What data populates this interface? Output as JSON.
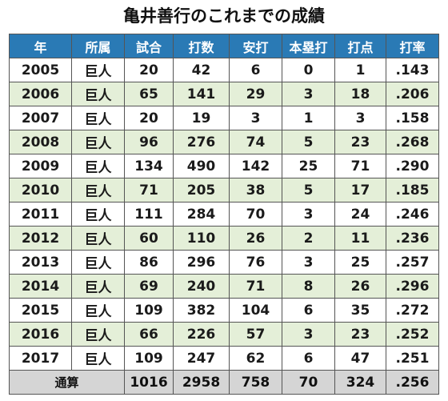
{
  "title": "亀井善行のこれまでの成績",
  "header": [
    "年",
    "所属",
    "試合",
    "打数",
    "安打",
    "本塁打",
    "打点",
    "打率"
  ],
  "rows": [
    [
      "2005",
      "巨人",
      "20",
      "42",
      "6",
      "0",
      "1",
      ".143"
    ],
    [
      "2006",
      "巨人",
      "65",
      "141",
      "29",
      "3",
      "18",
      ".206"
    ],
    [
      "2007",
      "巨人",
      "20",
      "19",
      "3",
      "1",
      "3",
      ".158"
    ],
    [
      "2008",
      "巨人",
      "96",
      "276",
      "74",
      "5",
      "23",
      ".268"
    ],
    [
      "2009",
      "巨人",
      "134",
      "490",
      "142",
      "25",
      "71",
      ".290"
    ],
    [
      "2010",
      "巨人",
      "71",
      "205",
      "38",
      "5",
      "17",
      ".185"
    ],
    [
      "2011",
      "巨人",
      "111",
      "284",
      "70",
      "3",
      "24",
      ".246"
    ],
    [
      "2012",
      "巨人",
      "60",
      "110",
      "26",
      "2",
      "11",
      ".236"
    ],
    [
      "2013",
      "巨人",
      "86",
      "296",
      "76",
      "3",
      "25",
      ".257"
    ],
    [
      "2014",
      "巨人",
      "69",
      "240",
      "71",
      "8",
      "26",
      ".296"
    ],
    [
      "2015",
      "巨人",
      "109",
      "382",
      "104",
      "6",
      "35",
      ".272"
    ],
    [
      "2016",
      "巨人",
      "66",
      "226",
      "57",
      "3",
      "23",
      ".252"
    ],
    [
      "2017",
      "巨人",
      "109",
      "247",
      "62",
      "6",
      "47",
      ".251"
    ]
  ],
  "total": {
    "label": "通算",
    "values": [
      "1016",
      "2958",
      "758",
      "70",
      "324",
      ".256"
    ]
  },
  "colors": {
    "header_bg": "#2a7ab5",
    "header_text": "#ffffff",
    "stripe_bg": "#e4efd8",
    "row_bg": "#ffffff",
    "total_bg": "#d5d5d5",
    "border": "#555555"
  }
}
